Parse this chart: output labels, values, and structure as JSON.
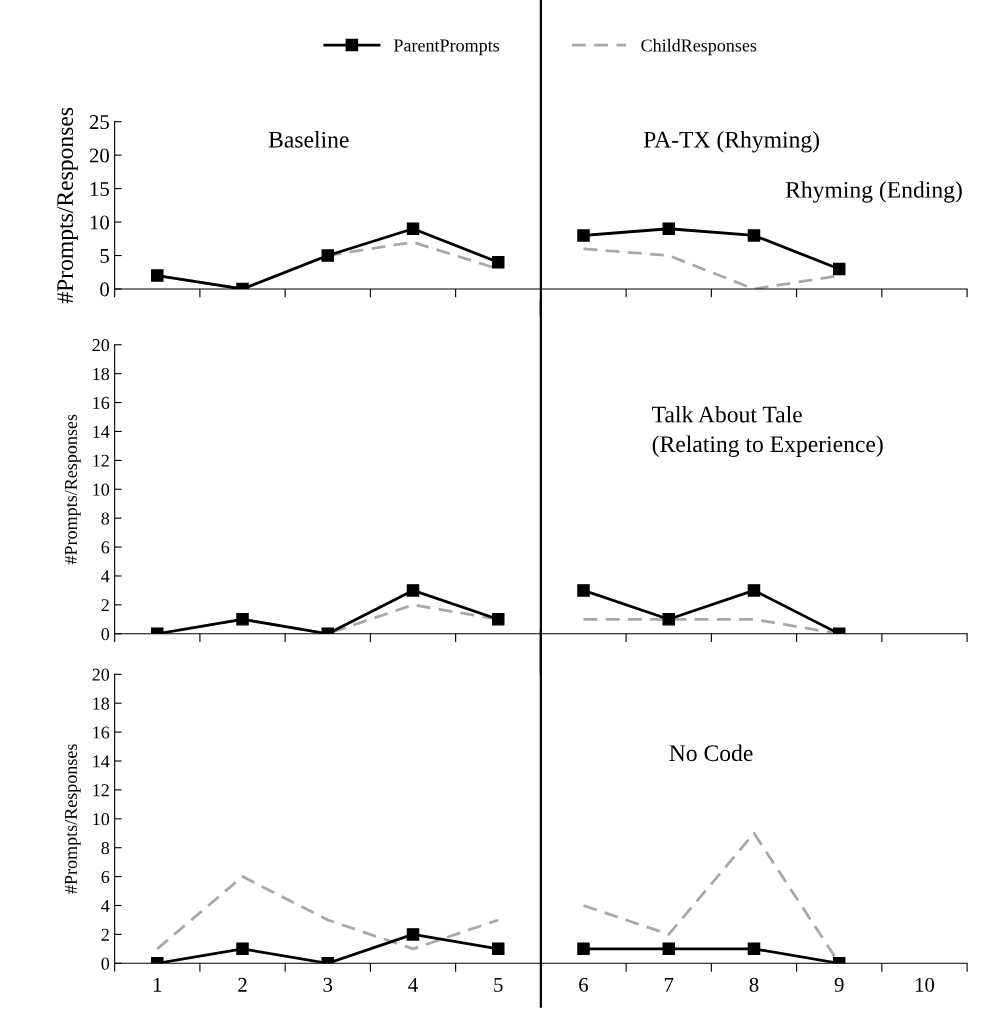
{
  "chart_data": [
    {
      "type": "line",
      "ylabel": "#Prompts/Responses",
      "xlim": [
        0.5,
        10.5
      ],
      "xticks": [
        {
          "value": 0.5,
          "label": null
        },
        {
          "value": 1.5,
          "label": null
        },
        {
          "value": 2.5,
          "label": null
        },
        {
          "value": 3.5,
          "label": null
        },
        {
          "value": 4.5,
          "label": null
        },
        {
          "value": 5.5,
          "label": null
        },
        {
          "value": 6.5,
          "label": null
        },
        {
          "value": 7.5,
          "label": null
        },
        {
          "value": 8.5,
          "label": null
        },
        {
          "value": 9.5,
          "label": null
        },
        {
          "value": 10.5,
          "label": null
        }
      ],
      "ylim": [
        0,
        25
      ],
      "yticks": [
        0,
        5,
        10,
        15,
        20,
        25
      ],
      "tick_labels": "y",
      "grid": false,
      "legend": "top",
      "series": [
        {
          "name": "ParentPrompts",
          "color": "#000000",
          "marker": "square",
          "line_style": "solid",
          "x": [
            1,
            2,
            3,
            4,
            5
          ],
          "values": [
            2,
            0,
            5,
            9,
            4
          ]
        },
        {
          "name": "ChildResponses",
          "color": "#a8a8a8",
          "marker": "none",
          "line_style": "dashed",
          "x": [
            1,
            2,
            3,
            4,
            5
          ],
          "values": [
            2,
            0,
            5,
            7,
            3
          ]
        },
        {
          "color": "#000000",
          "marker": "square",
          "line_style": "solid",
          "x": [
            6,
            7,
            8,
            9
          ],
          "values": [
            8,
            9,
            8,
            3
          ]
        },
        {
          "color": "#a8a8a8",
          "marker": "none",
          "line_style": "dashed",
          "x": [
            6,
            7,
            8,
            9
          ],
          "values": [
            6,
            5,
            0,
            2
          ]
        }
      ],
      "ref_lines": [
        {
          "axis": "x",
          "value": 5.5,
          "color": "#000000"
        }
      ],
      "annotations": [
        "Baseline",
        "PA-TX (Rhyming)",
        "Rhyming (Ending)"
      ]
    },
    {
      "type": "line",
      "ylabel": "#Prompts/Responses",
      "xlim": [
        0.5,
        10.5
      ],
      "xticks": [
        {
          "value": 0.5,
          "label": null
        },
        {
          "value": 1.5,
          "label": null
        },
        {
          "value": 2.5,
          "label": null
        },
        {
          "value": 3.5,
          "label": null
        },
        {
          "value": 4.5,
          "label": null
        },
        {
          "value": 5.5,
          "label": null
        },
        {
          "value": 6.5,
          "label": null
        },
        {
          "value": 7.5,
          "label": null
        },
        {
          "value": 8.5,
          "label": null
        },
        {
          "value": 9.5,
          "label": null
        },
        {
          "value": 10.5,
          "label": null
        }
      ],
      "ylim": [
        0,
        20
      ],
      "yticks": [
        0,
        2,
        4,
        6,
        8,
        10,
        12,
        14,
        16,
        18,
        20
      ],
      "tick_labels": "y",
      "grid": false,
      "series": [
        {
          "color": "#000000",
          "marker": "square",
          "line_style": "solid",
          "x": [
            1,
            2,
            3,
            4,
            5
          ],
          "values": [
            0,
            1,
            0,
            3,
            1
          ]
        },
        {
          "color": "#a8a8a8",
          "marker": "none",
          "line_style": "dashed",
          "x": [
            1,
            2,
            3,
            4,
            5
          ],
          "values": [
            0,
            1,
            0,
            2,
            1
          ]
        },
        {
          "color": "#000000",
          "marker": "square",
          "line_style": "solid",
          "x": [
            6,
            7,
            8,
            9
          ],
          "values": [
            3,
            1,
            3,
            0
          ]
        },
        {
          "color": "#a8a8a8",
          "marker": "none",
          "line_style": "dashed",
          "x": [
            6,
            7,
            8,
            9
          ],
          "values": [
            1,
            1,
            1,
            0
          ]
        }
      ],
      "ref_lines": [
        {
          "axis": "x",
          "value": 5.5,
          "color": "#000000"
        }
      ],
      "annotations": [
        "Talk About Tale\n(Relating to Experience)"
      ]
    },
    {
      "type": "line",
      "ylabel": "#Prompts/Responses",
      "xlim": [
        0.5,
        10.5
      ],
      "xticks": [
        {
          "value": 0.5,
          "label": null
        },
        1,
        {
          "value": 1.5,
          "label": null
        },
        2,
        {
          "value": 2.5,
          "label": null
        },
        3,
        {
          "value": 3.5,
          "label": null
        },
        4,
        {
          "value": 4.5,
          "label": null
        },
        5,
        {
          "value": 5.5,
          "label": null
        },
        6,
        {
          "value": 6.5,
          "label": null
        },
        7,
        {
          "value": 7.5,
          "label": null
        },
        8,
        {
          "value": 8.5,
          "label": null
        },
        9,
        {
          "value": 9.5,
          "label": null
        },
        10,
        {
          "value": 10.5,
          "label": null
        }
      ],
      "ylim": [
        0,
        20
      ],
      "yticks": [
        0,
        2,
        4,
        6,
        8,
        10,
        12,
        14,
        16,
        18,
        20
      ],
      "grid": false,
      "series": [
        {
          "color": "#000000",
          "marker": "square",
          "line_style": "solid",
          "x": [
            1,
            2,
            3,
            4,
            5
          ],
          "values": [
            0,
            1,
            0,
            2,
            1
          ]
        },
        {
          "color": "#a8a8a8",
          "marker": "none",
          "line_style": "dashed",
          "x": [
            1,
            2,
            3,
            4,
            5
          ],
          "values": [
            1,
            6,
            3,
            1,
            3
          ]
        },
        {
          "color": "#000000",
          "marker": "square",
          "line_style": "solid",
          "x": [
            6,
            7,
            8,
            9
          ],
          "values": [
            1,
            1,
            1,
            0
          ]
        },
        {
          "color": "#a8a8a8",
          "marker": "none",
          "line_style": "dashed",
          "x": [
            6,
            7,
            8,
            9
          ],
          "values": [
            4,
            2,
            9,
            0
          ]
        }
      ],
      "ref_lines": [
        {
          "axis": "x",
          "value": 5.5,
          "color": "#000000"
        }
      ],
      "annotations": [
        "No Code"
      ]
    }
  ]
}
